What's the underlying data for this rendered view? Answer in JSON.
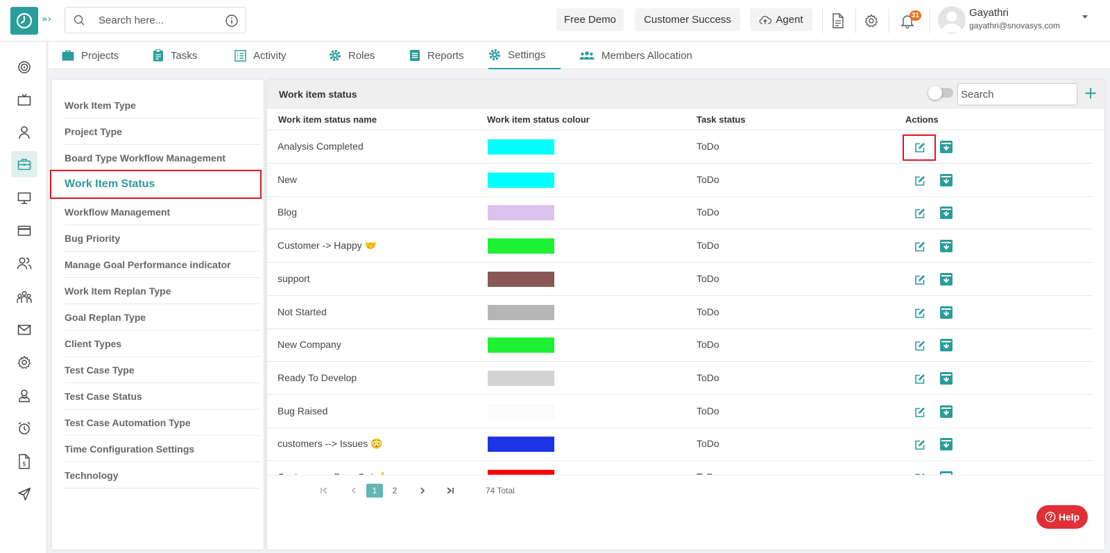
{
  "header": {
    "search_placeholder": "Search here...",
    "free_demo": "Free Demo",
    "customer_success": "Customer Success",
    "agent": "Agent",
    "notification_count": "31",
    "user_name": "Gayathri",
    "user_email": "gayathri@snovasys.com"
  },
  "nav": {
    "tabs": [
      {
        "label": "Projects",
        "icon": "briefcase-icon"
      },
      {
        "label": "Tasks",
        "icon": "clipboard-icon"
      },
      {
        "label": "Activity",
        "icon": "list-icon"
      },
      {
        "label": "Roles",
        "icon": "gear-icon"
      },
      {
        "label": "Reports",
        "icon": "document-icon"
      },
      {
        "label": "Settings",
        "icon": "gear-icon"
      },
      {
        "label": "Members Allocation",
        "icon": "users-icon"
      }
    ],
    "active": "Settings"
  },
  "settings_menu": {
    "items": [
      "Work Item Type",
      "Project Type",
      "Board Type Workflow Management",
      "Work Item Status",
      "Workflow Management",
      "Bug Priority",
      "Manage Goal Performance indicator",
      "Work Item Replan Type",
      "Goal Replan Type",
      "Client Types",
      "Test Case Type",
      "Test Case Status",
      "Test Case Automation Type",
      "Time Configuration Settings",
      "Technology"
    ],
    "active": "Work Item Status"
  },
  "table": {
    "title": "Work item status",
    "search_placeholder": "Search",
    "columns": [
      "Work item status name",
      "Work item status colour",
      "Task status",
      "Actions"
    ],
    "rows": [
      {
        "name": "Analysis Completed",
        "color": "#00ffff",
        "task": "ToDo"
      },
      {
        "name": "New",
        "color": "#00ffff",
        "task": "ToDo"
      },
      {
        "name": "Blog",
        "color": "#dcc3ee",
        "task": "ToDo"
      },
      {
        "name": "Customer -> Happy 🤝",
        "color": "#1ef132",
        "task": "ToDo"
      },
      {
        "name": "support",
        "color": "#8a5757",
        "task": "ToDo"
      },
      {
        "name": "Not Started",
        "color": "#b5b5b5",
        "task": "ToDo"
      },
      {
        "name": "New Company",
        "color": "#1ef132",
        "task": "ToDo"
      },
      {
        "name": "Ready To Develop",
        "color": "#d3d3d3",
        "task": "ToDo"
      },
      {
        "name": "Bug Raised",
        "color": "#fafafa",
        "task": "ToDo"
      },
      {
        "name": "customers --> Issues 😳",
        "color": "#1d33e6",
        "task": "ToDo"
      },
      {
        "name": "Customer -> Drop Out 👍",
        "color": "#ff0000",
        "task": "ToDo"
      }
    ],
    "pagination": {
      "pages": [
        "1",
        "2"
      ],
      "current": "1",
      "total": "74 Total"
    }
  },
  "help": "Help",
  "colors": {
    "accent": "#2a9d9a",
    "highlight": "#e0161d",
    "help": "#e02f36"
  }
}
